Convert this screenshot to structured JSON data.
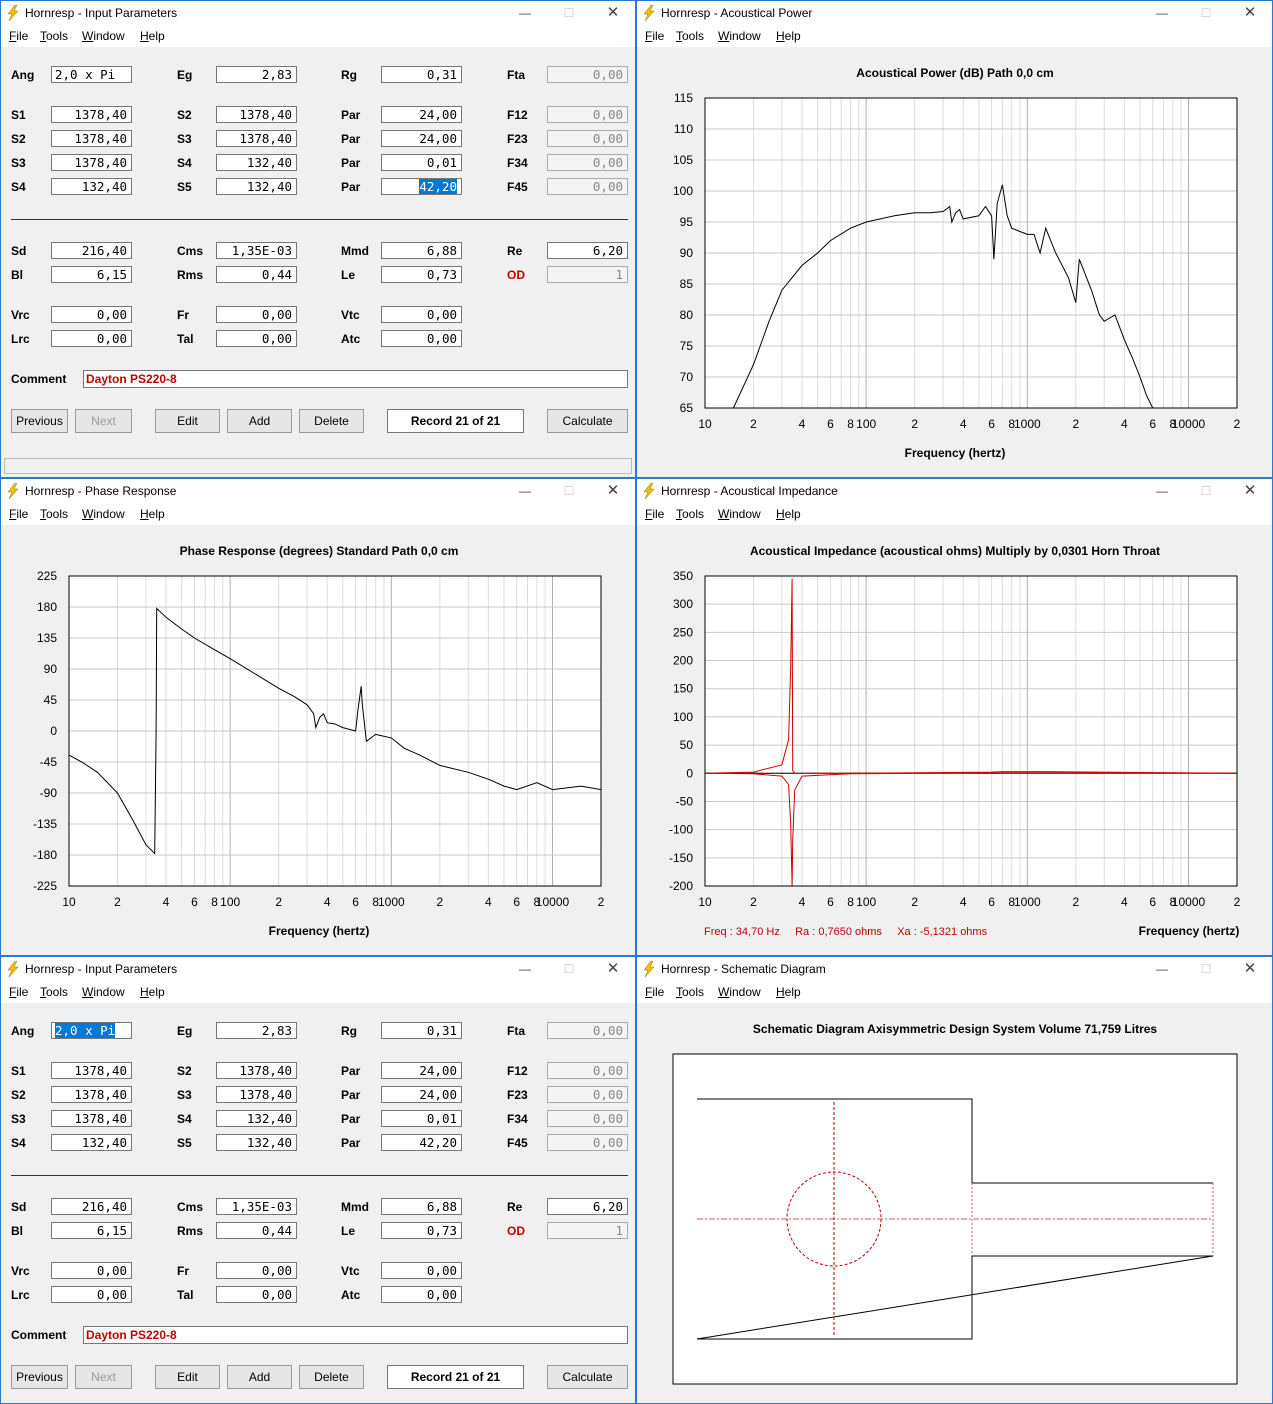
{
  "menu": {
    "file": "File",
    "tools": "Tools",
    "window": "Window",
    "help": "Help"
  },
  "windows": {
    "input1": {
      "title": "Hornresp - Input Parameters"
    },
    "power": {
      "title": "Hornresp - Acoustical Power"
    },
    "phase": {
      "title": "Hornresp - Phase Response"
    },
    "impedance": {
      "title": "Hornresp - Acoustical Impedance"
    },
    "input2": {
      "title": "Hornresp - Input Parameters"
    },
    "schematic": {
      "title": "Hornresp - Schematic Diagram"
    }
  },
  "input": {
    "row1": [
      {
        "label": "Ang",
        "value": "2,0 x Pi"
      },
      {
        "label": "Eg",
        "value": "2,83"
      },
      {
        "label": "Rg",
        "value": "0,31"
      },
      {
        "label": "Fta",
        "value": "0,00"
      }
    ],
    "row2": [
      {
        "label": "S1",
        "value": "1378,40"
      },
      {
        "label": "S2",
        "value": "1378,40"
      },
      {
        "label": "Par",
        "value": "24,00"
      },
      {
        "label": "F12",
        "value": "0,00"
      }
    ],
    "row3": [
      {
        "label": "S2",
        "value": "1378,40"
      },
      {
        "label": "S3",
        "value": "1378,40"
      },
      {
        "label": "Par",
        "value": "24,00"
      },
      {
        "label": "F23",
        "value": "0,00"
      }
    ],
    "row4": [
      {
        "label": "S3",
        "value": "1378,40"
      },
      {
        "label": "S4",
        "value": "132,40"
      },
      {
        "label": "Par",
        "value": "0,01"
      },
      {
        "label": "F34",
        "value": "0,00"
      }
    ],
    "row5": [
      {
        "label": "S4",
        "value": "132,40"
      },
      {
        "label": "S5",
        "value": "132,40"
      },
      {
        "label": "Par",
        "value": "42,20"
      },
      {
        "label": "F45",
        "value": "0,00"
      }
    ],
    "row6": [
      {
        "label": "Sd",
        "value": "216,40"
      },
      {
        "label": "Cms",
        "value": "1,35E-03"
      },
      {
        "label": "Mmd",
        "value": "6,88"
      },
      {
        "label": "Re",
        "value": "6,20"
      }
    ],
    "row7": [
      {
        "label": "Bl",
        "value": "6,15"
      },
      {
        "label": "Rms",
        "value": "0,44"
      },
      {
        "label": "Le",
        "value": "0,73"
      },
      {
        "label": "OD",
        "value": "1"
      }
    ],
    "row8": [
      {
        "label": "Vrc",
        "value": "0,00"
      },
      {
        "label": "Fr",
        "value": "0,00"
      },
      {
        "label": "Vtc",
        "value": "0,00"
      }
    ],
    "row9": [
      {
        "label": "Lrc",
        "value": "0,00"
      },
      {
        "label": "Tal",
        "value": "0,00"
      },
      {
        "label": "Atc",
        "value": "0,00"
      }
    ],
    "comment_label": "Comment",
    "comment": "Dayton PS220-8",
    "buttons": {
      "previous": "Previous",
      "next": "Next",
      "edit": "Edit",
      "add": "Add",
      "delete": "Delete",
      "record": "Record 21 of 21",
      "calculate": "Calculate"
    }
  },
  "power_chart": {
    "title": "Acoustical Power (dB)   Path 0,0 cm",
    "xlabel": "Frequency (hertz)",
    "y_ticks": [
      "115",
      "110",
      "105",
      "100",
      "95",
      "90",
      "85",
      "80",
      "75",
      "70",
      "65"
    ],
    "x_ticks": [
      "10",
      "2",
      "4",
      "6",
      "8",
      "100",
      "2",
      "4",
      "6",
      "8",
      "1000",
      "2",
      "4",
      "6",
      "8",
      "10000",
      "2"
    ]
  },
  "phase_chart": {
    "title": "Phase Response (degrees)   Standard   Path 0,0 cm",
    "xlabel": "Frequency (hertz)",
    "y_ticks": [
      "225",
      "180",
      "135",
      "90",
      "45",
      "0",
      "-45",
      "-90",
      "-135",
      "-180",
      "-225"
    ],
    "x_ticks": [
      "10",
      "2",
      "4",
      "6",
      "8",
      "100",
      "2",
      "4",
      "6",
      "8",
      "1000",
      "2",
      "4",
      "6",
      "8",
      "10000",
      "2"
    ]
  },
  "impedance_chart": {
    "title": "Acoustical Impedance (acoustical ohms)   Multiply by 0,0301   Horn Throat",
    "xlabel": "Frequency (hertz)",
    "readout": "Freq : 34,70 Hz     Ra : 0,7650 ohms     Xa : -5,1321 ohms",
    "y_ticks": [
      "350",
      "300",
      "250",
      "200",
      "150",
      "100",
      "50",
      "0",
      "-50",
      "-100",
      "-150",
      "-200"
    ],
    "x_ticks": [
      "10",
      "2",
      "4",
      "6",
      "8",
      "100",
      "2",
      "4",
      "6",
      "8",
      "1000",
      "2",
      "4",
      "6",
      "8",
      "10000",
      "2"
    ]
  },
  "schematic": {
    "title": "Schematic Diagram   Axisymmetric Design   System Volume 71,759 Litres"
  },
  "chart_data": [
    {
      "type": "line",
      "title": "Acoustical Power (dB)   Path 0,0 cm",
      "xlabel": "Frequency (hertz)",
      "xscale": "log",
      "xlim": [
        10,
        20000
      ],
      "ylim": [
        65,
        115
      ],
      "grid": true,
      "series": [
        {
          "x": [
            15,
            20,
            25,
            30,
            40,
            50,
            60,
            80,
            100,
            150,
            200,
            250,
            300,
            330,
            340,
            360,
            380,
            400,
            500,
            550,
            600,
            620,
            650,
            700,
            750,
            800,
            1000,
            1100,
            1200,
            1300,
            1500,
            1800,
            2000,
            2100,
            2500,
            2800,
            3000,
            3500,
            4000,
            4500,
            5000,
            5500,
            6000,
            7000,
            8000
          ],
          "y": [
            65,
            72,
            79,
            84,
            88,
            90,
            92,
            94,
            95,
            96,
            96.5,
            96.5,
            96.7,
            97.5,
            95,
            96.5,
            97,
            95.5,
            96,
            97.5,
            96,
            89,
            98,
            101,
            96,
            94,
            93,
            93,
            90,
            94,
            90,
            86,
            82,
            89,
            84,
            80,
            79,
            80,
            76,
            73,
            70,
            67,
            65,
            65,
            65
          ]
        }
      ]
    },
    {
      "type": "line",
      "title": "Phase Response (degrees)   Standard   Path 0,0 cm",
      "xlabel": "Frequency (hertz)",
      "xscale": "log",
      "xlim": [
        10,
        20000
      ],
      "ylim": [
        -225,
        225
      ],
      "grid": true,
      "series": [
        {
          "x": [
            10,
            12,
            15,
            20,
            25,
            30,
            34,
            34.7,
            35,
            40,
            50,
            60,
            80,
            100,
            150,
            200,
            250,
            300,
            330,
            340,
            360,
            380,
            400,
            450,
            500,
            600,
            620,
            650,
            660,
            700,
            800,
            1000,
            1200,
            1500,
            2000,
            3000,
            4000,
            5000,
            6000,
            8000,
            10000,
            15000,
            20000
          ],
          "y": [
            -35,
            -45,
            -60,
            -90,
            -130,
            -165,
            -178,
            0,
            178,
            165,
            148,
            135,
            118,
            105,
            80,
            62,
            50,
            38,
            25,
            5,
            20,
            25,
            12,
            10,
            5,
            0,
            30,
            65,
            40,
            -15,
            -5,
            -10,
            -25,
            -35,
            -50,
            -60,
            -70,
            -80,
            -85,
            -75,
            -85,
            -80,
            -85
          ]
        }
      ]
    },
    {
      "type": "line",
      "title": "Acoustical Impedance (acoustical ohms)   Multiply by 0,0301   Horn Throat",
      "xlabel": "Frequency (hertz)",
      "xscale": "log",
      "xlim": [
        10,
        20000
      ],
      "ylim": [
        -200,
        350
      ],
      "grid": true,
      "series": [
        {
          "x": [
            10,
            20,
            30,
            33,
            34,
            34.7,
            35,
            36,
            40,
            80,
            600,
            700,
            1200,
            20000
          ],
          "y": [
            0,
            2,
            15,
            60,
            190,
            345,
            5,
            0,
            0,
            0,
            2,
            3,
            3,
            0
          ]
        },
        {
          "x": [
            10,
            20,
            30,
            33,
            34,
            34.7,
            35,
            36,
            40,
            80,
            600,
            700,
            1200,
            20000
          ],
          "y": [
            0,
            -1,
            -5,
            -20,
            -90,
            -200,
            -120,
            -30,
            -5,
            -1,
            1,
            1,
            1,
            0
          ]
        }
      ]
    }
  ]
}
